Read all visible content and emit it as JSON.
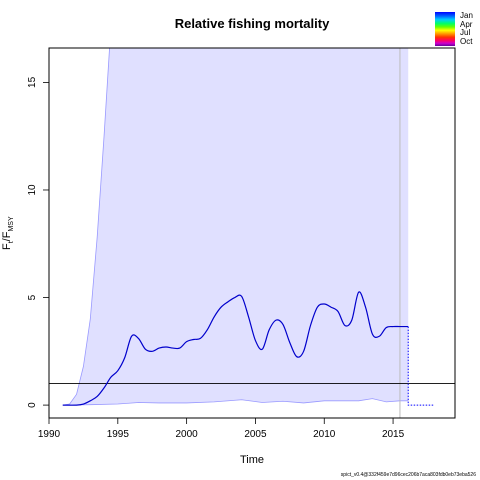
{
  "chart_data": {
    "type": "line",
    "title": "Relative fishing mortality",
    "xlabel": "Time",
    "ylabel": "F_t/F_MSY",
    "xlim": [
      1990,
      2019.5
    ],
    "ylim": [
      -0.6,
      16.6
    ],
    "xticks": [
      1990,
      1995,
      2000,
      2005,
      2010,
      2015
    ],
    "yticks": [
      0,
      5,
      10,
      15
    ],
    "reference_line_y": 1,
    "vertical_line_x": 2015.5,
    "legend_months": [
      "Jan",
      "Apr",
      "Jul",
      "Oct"
    ],
    "footnote": "spict_v0.4@332f459e7d96cec206b7aca803fdb0eb73eba526",
    "series": [
      {
        "role": "estimate",
        "color": "#0000cc",
        "x": [
          1991,
          1992,
          1992.5,
          1993,
          1993.5,
          1994,
          1994.5,
          1995,
          1995.5,
          1996,
          1996.5,
          1997,
          1997.5,
          1998,
          1998.5,
          1999,
          1999.5,
          2000,
          2000.5,
          2001,
          2001.5,
          2002,
          2002.5,
          2003,
          2003.5,
          2004,
          2004.5,
          2005,
          2005.5,
          2006,
          2006.5,
          2007,
          2007.5,
          2008,
          2008.5,
          2009,
          2009.5,
          2010,
          2010.5,
          2011,
          2011.5,
          2012,
          2012.5,
          2013,
          2013.5,
          2014,
          2014.5,
          2015,
          2015.5,
          2016.1
        ],
        "y": [
          0,
          0,
          0.05,
          0.2,
          0.4,
          0.8,
          1.3,
          1.6,
          2.2,
          3.2,
          3.1,
          2.6,
          2.5,
          2.65,
          2.7,
          2.65,
          2.65,
          2.95,
          3.05,
          3.1,
          3.5,
          4.1,
          4.55,
          4.8,
          5.0,
          5.05,
          4.1,
          3.0,
          2.6,
          3.5,
          3.95,
          3.75,
          2.9,
          2.25,
          2.5,
          3.7,
          4.55,
          4.7,
          4.55,
          4.35,
          3.7,
          3.95,
          5.25,
          4.55,
          3.3,
          3.2,
          3.6,
          3.65,
          3.65,
          3.65
        ]
      },
      {
        "role": "forecast",
        "color": "#0000ff",
        "x": [
          2016.1,
          2016.1,
          2018
        ],
        "y": [
          3.65,
          0,
          0
        ]
      },
      {
        "role": "ci_lower",
        "color": "#9999ff",
        "x": [
          1991,
          1993,
          1995,
          1996.5,
          1998,
          2000,
          2002,
          2004,
          2005.5,
          2007,
          2008.5,
          2010,
          2011.5,
          2012.5,
          2013.5,
          2014.5,
          2015.5,
          2016.1
        ],
        "y": [
          0,
          0.02,
          0.05,
          0.12,
          0.1,
          0.1,
          0.15,
          0.25,
          0.12,
          0.18,
          0.1,
          0.2,
          0.2,
          0.2,
          0.3,
          0.15,
          0.2,
          0.2
        ]
      },
      {
        "role": "ci_upper",
        "color": "#9999ff",
        "x": [
          1991,
          1991.5,
          1992,
          1992.5,
          1993,
          1993.5,
          1994,
          1994.4,
          2016.1
        ],
        "y": [
          0,
          0.05,
          0.5,
          1.8,
          4.0,
          7.8,
          12.5,
          16.6,
          16.6
        ]
      }
    ]
  }
}
